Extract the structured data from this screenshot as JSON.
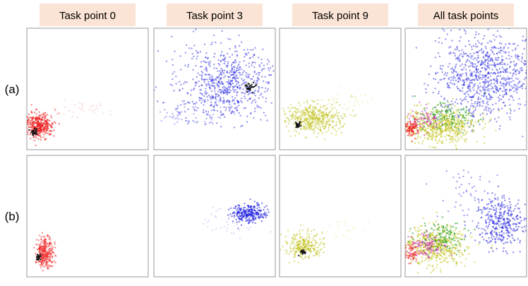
{
  "columns": [
    "Task point 0",
    "Task point 3",
    "Task point 9",
    "All task points"
  ],
  "rows": [
    "(a)",
    "(b)"
  ]
}
